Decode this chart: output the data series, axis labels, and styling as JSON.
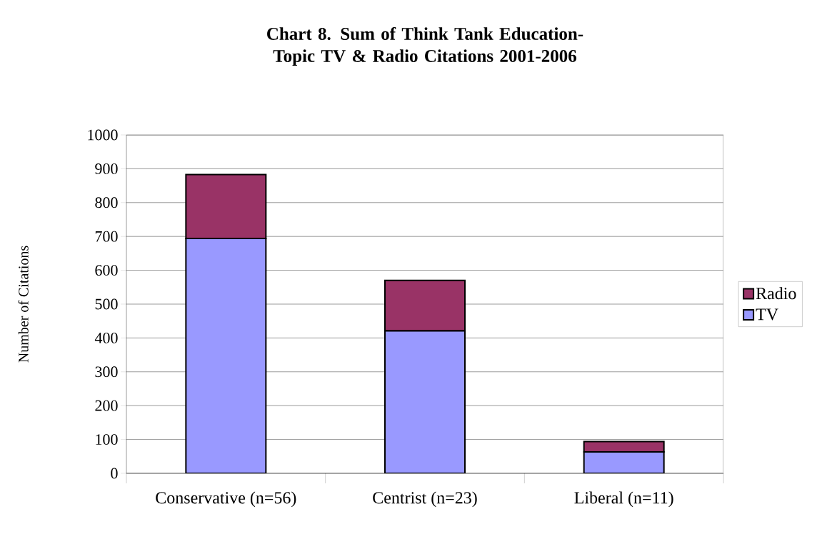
{
  "chart_data": {
    "type": "bar",
    "stacked": true,
    "title": "Chart 8. Sum of Think Tank Education-Topic TV & Radio Citations 2001-2006",
    "ylabel": "Number of Citations",
    "categories": [
      "Conservative (n=56)",
      "Centrist (n=23)",
      "Liberal (n=11)"
    ],
    "series": [
      {
        "name": "TV",
        "color": "#9999ff",
        "values": [
          694,
          421,
          63
        ]
      },
      {
        "name": "Radio",
        "color": "#993366",
        "values": [
          189,
          149,
          31
        ]
      }
    ],
    "ylim": [
      0,
      1000
    ],
    "yticks": [
      0,
      100,
      200,
      300,
      400,
      500,
      600,
      700,
      800,
      900,
      1000
    ],
    "grid": "y",
    "legend": "right"
  }
}
